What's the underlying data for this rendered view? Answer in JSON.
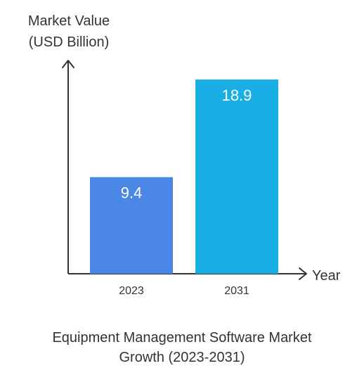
{
  "chart_data": {
    "type": "bar",
    "ylabel_lines": [
      "Market Value",
      "(USD Billion)"
    ],
    "xlabel": "Year",
    "title_lines": [
      "Equipment Management Software Market",
      "Growth (2023-2031)"
    ],
    "categories": [
      "2023",
      "2031"
    ],
    "values": [
      9.4,
      18.9
    ],
    "value_labels": [
      "9.4",
      "18.9"
    ],
    "colors": [
      "#4a86e4",
      "#19aee4"
    ],
    "ylim": [
      0,
      20
    ],
    "grid": false
  }
}
